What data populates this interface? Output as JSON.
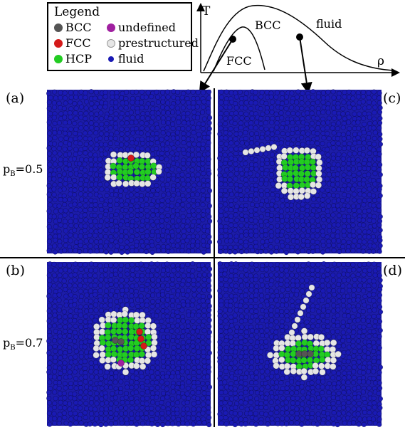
{
  "legend": {
    "title": "Legend",
    "items": [
      {
        "label": "BCC",
        "color": "#555555"
      },
      {
        "label": "undefined",
        "color": "#a020a0"
      },
      {
        "label": "FCC",
        "color": "#d41a1a"
      },
      {
        "label": "prestructured",
        "color": "#e6e6e6"
      },
      {
        "label": "HCP",
        "color": "#22cc22"
      },
      {
        "label": "fluid",
        "color": "#1a1ab4"
      }
    ]
  },
  "phase_diagram": {
    "y_axis": "T",
    "x_axis": "ρ",
    "regions": [
      "BCC",
      "fluid",
      "FCC"
    ]
  },
  "panels": [
    {
      "label": "(a)"
    },
    {
      "label": "(c)"
    },
    {
      "label": "(b)"
    },
    {
      "label": "(d)"
    }
  ],
  "rows": [
    {
      "p": "p",
      "sub": "B",
      "value": "=0.5"
    },
    {
      "p": "p",
      "sub": "B",
      "value": "=0.7"
    }
  ]
}
